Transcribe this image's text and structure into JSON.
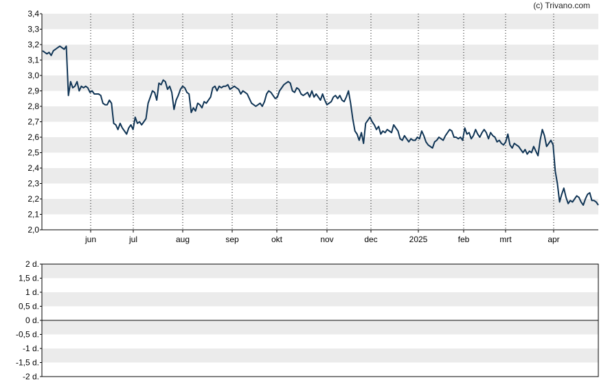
{
  "copyright": "(c) Trivano.com",
  "colors": {
    "line": "#0e3354",
    "band": "#ebebeb",
    "zero_line": "#000000"
  },
  "chart_data": [
    {
      "type": "line",
      "y_tick_labels": [
        "2,0",
        "2,1",
        "2,2",
        "2,3",
        "2,4",
        "2,5",
        "2,6",
        "2,7",
        "2,8",
        "2,9",
        "3,0",
        "3,1",
        "3,2",
        "3,3",
        "3,4"
      ],
      "ylim": [
        2.0,
        3.4
      ],
      "x_tick_labels": [
        "jun",
        "jul",
        "aug",
        "sep",
        "okt",
        "nov",
        "dec",
        "2025",
        "feb",
        "mrt",
        "apr"
      ],
      "grid": "vertical dotted lines at month ticks, alternating horizontal bands",
      "series": [
        {
          "values": [
            3.16,
            3.15,
            3.14,
            3.15,
            3.13,
            3.16,
            3.17,
            3.18,
            3.19,
            3.18,
            3.17,
            3.19,
            2.87,
            2.96,
            2.92,
            2.93,
            2.96,
            2.9,
            2.93,
            2.92,
            2.93,
            2.92,
            2.89,
            2.9,
            2.88,
            2.88,
            2.88,
            2.87,
            2.82,
            2.81,
            2.81,
            2.84,
            2.82,
            2.69,
            2.68,
            2.65,
            2.69,
            2.66,
            2.64,
            2.62,
            2.66,
            2.68,
            2.65,
            2.73,
            2.69,
            2.7,
            2.68,
            2.7,
            2.72,
            2.82,
            2.86,
            2.9,
            2.89,
            2.84,
            2.95,
            2.94,
            2.97,
            2.96,
            2.91,
            2.93,
            2.89,
            2.78,
            2.84,
            2.87,
            2.91,
            2.93,
            2.92,
            2.89,
            2.88,
            2.76,
            2.79,
            2.77,
            2.82,
            2.81,
            2.79,
            2.83,
            2.82,
            2.84,
            2.86,
            2.92,
            2.93,
            2.9,
            2.93,
            2.92,
            2.93,
            2.93,
            2.94,
            2.91,
            2.92,
            2.93,
            2.92,
            2.91,
            2.88,
            2.9,
            2.89,
            2.88,
            2.85,
            2.82,
            2.81,
            2.8,
            2.81,
            2.82,
            2.8,
            2.83,
            2.88,
            2.9,
            2.89,
            2.87,
            2.85,
            2.86,
            2.9,
            2.92,
            2.94,
            2.95,
            2.96,
            2.95,
            2.9,
            2.89,
            2.92,
            2.91,
            2.88,
            2.87,
            2.88,
            2.89,
            2.86,
            2.9,
            2.86,
            2.88,
            2.86,
            2.84,
            2.88,
            2.84,
            2.81,
            2.82,
            2.83,
            2.86,
            2.87,
            2.85,
            2.87,
            2.84,
            2.83,
            2.86,
            2.9,
            2.82,
            2.72,
            2.64,
            2.62,
            2.58,
            2.63,
            2.56,
            2.69,
            2.71,
            2.73,
            2.7,
            2.68,
            2.65,
            2.67,
            2.62,
            2.64,
            2.63,
            2.65,
            2.64,
            2.63,
            2.68,
            2.66,
            2.64,
            2.59,
            2.58,
            2.61,
            2.59,
            2.57,
            2.59,
            2.58,
            2.58,
            2.6,
            2.59,
            2.64,
            2.61,
            2.57,
            2.55,
            2.54,
            2.53,
            2.57,
            2.58,
            2.6,
            2.59,
            2.58,
            2.61,
            2.63,
            2.65,
            2.64,
            2.6,
            2.6,
            2.59,
            2.6,
            2.58,
            2.66,
            2.62,
            2.63,
            2.59,
            2.61,
            2.65,
            2.62,
            2.6,
            2.63,
            2.65,
            2.63,
            2.59,
            2.63,
            2.61,
            2.6,
            2.57,
            2.58,
            2.56,
            2.55,
            2.57,
            2.62,
            2.55,
            2.53,
            2.56,
            2.55,
            2.54,
            2.52,
            2.5,
            2.52,
            2.49,
            2.51,
            2.5,
            2.54,
            2.51,
            2.48,
            2.58,
            2.65,
            2.61,
            2.54,
            2.56,
            2.58,
            2.55,
            2.38,
            2.3,
            2.18,
            2.23,
            2.27,
            2.21,
            2.17,
            2.19,
            2.18,
            2.2,
            2.22,
            2.21,
            2.18,
            2.16,
            2.2,
            2.23,
            2.24,
            2.19,
            2.19,
            2.18,
            2.16
          ]
        }
      ]
    },
    {
      "type": "line",
      "y_tick_labels": [
        "2 d.",
        "1,5 d.",
        "1 d.",
        "0,5 d.",
        "0 d.",
        "-0,5 d.",
        "-1 d.",
        "-1,5 d.",
        "-2 d."
      ],
      "ylim": [
        -2,
        2
      ],
      "series": []
    }
  ]
}
